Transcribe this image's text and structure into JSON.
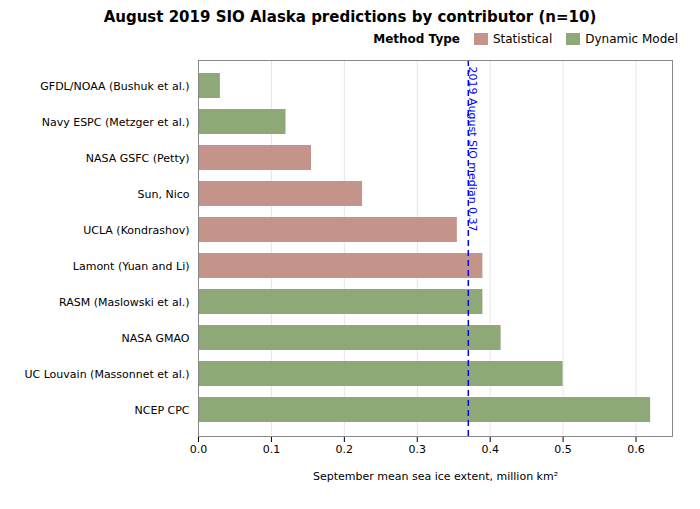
{
  "chart_data": {
    "type": "bar",
    "orientation": "horizontal",
    "title": "August 2019 SIO Alaska predictions by contributor (n=10)",
    "xlabel": "September mean sea ice extent, million km²",
    "categories": [
      "GFDL/NOAA (Bushuk et al.)",
      "Navy ESPC (Metzger et al.)",
      "NASA GSFC (Petty)",
      "Sun, Nico",
      "UCLA (Kondrashov)",
      "Lamont (Yuan and Li)",
      "RASM (Maslowski et al.)",
      "NASA GMAO",
      "UC Louvain (Massonnet et al.)",
      "NCEP CPC"
    ],
    "series": [
      {
        "name": "Statistical",
        "color": "#c4948a",
        "values": [
          null,
          null,
          0.155,
          0.225,
          0.355,
          0.39,
          null,
          null,
          null,
          null
        ]
      },
      {
        "name": "Dynamic Model",
        "color": "#8fa878",
        "values": [
          0.03,
          0.12,
          null,
          null,
          null,
          null,
          0.39,
          0.415,
          0.5,
          0.62
        ]
      }
    ],
    "xlim": [
      0.0,
      0.65
    ],
    "xticks": [
      {
        "value": 0.0,
        "label": "0.0"
      },
      0.1,
      0.2,
      0.3,
      0.4,
      0.5,
      0.6
    ],
    "grid": true,
    "legend": "upper right",
    "legend_title": "Method Type",
    "annotations": [
      {
        "text": "2019 August SIO median 0.37",
        "x": 0.37,
        "color": "blue",
        "line_style": "dashed"
      }
    ]
  }
}
